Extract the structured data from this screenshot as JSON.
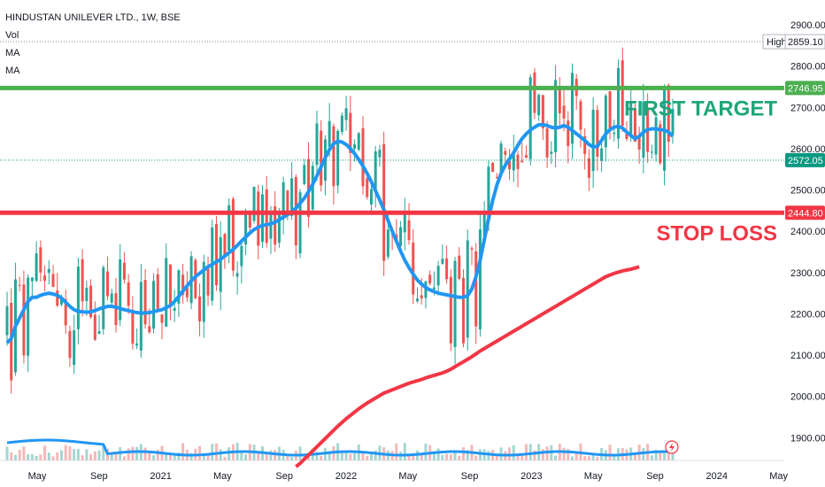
{
  "legend": {
    "symbol": "HINDUSTAN UNILEVER LTD., 1W, BSE",
    "vol_label": "Vol",
    "ma1_label": "MA",
    "ma2_label": "MA"
  },
  "colors": {
    "up": "#26a69a",
    "down": "#ef5350",
    "target_line": "#4caf50",
    "stop_line": "#f23645",
    "ma_short": "#2196f3",
    "ma_long": "#f23645",
    "last_price_tag": "#089981",
    "vol_up": "#a5d6d0",
    "vol_down": "#f5b8b8"
  },
  "annotations": {
    "target_label": "FIRST TARGET",
    "stop_label": "STOP LOSS"
  },
  "price_tags": {
    "high_label": "High",
    "high_value": "2859.10",
    "target_value": "2746.95",
    "last_value": "2572.05",
    "stop_value": "2444.80"
  },
  "chart_data": {
    "type": "candlestick",
    "title": "HINDUSTAN UNILEVER LTD., 1W, BSE",
    "y_ticks": [
      "2900.00",
      "2800.00",
      "2700.00",
      "2600.00",
      "2500.00",
      "2400.00",
      "2300.00",
      "2200.00",
      "2100.00",
      "2000.00",
      "1900.00"
    ],
    "x_ticks": [
      "May",
      "Sep",
      "2021",
      "May",
      "Sep",
      "2022",
      "May",
      "Sep",
      "2023",
      "May",
      "Sep",
      "2024",
      "May"
    ],
    "ylim": [
      1845,
      2960
    ],
    "levels": {
      "first_target": 2746.95,
      "stop_loss": 2444.8,
      "high": 2859.1,
      "last": 2572.05
    },
    "ma_short": [
      2130,
      2140,
      2170,
      2190,
      2210,
      2230,
      2240,
      2240,
      2245,
      2248,
      2250,
      2248,
      2245,
      2238,
      2228,
      2218,
      2210,
      2206,
      2205,
      2204,
      2205,
      2208,
      2212,
      2215,
      2218,
      2218,
      2216,
      2213,
      2210,
      2208,
      2205,
      2203,
      2202,
      2202,
      2203,
      2205,
      2208,
      2210,
      2215,
      2220,
      2230,
      2242,
      2255,
      2268,
      2280,
      2290,
      2298,
      2306,
      2314,
      2320,
      2326,
      2332,
      2340,
      2348,
      2356,
      2366,
      2376,
      2386,
      2396,
      2404,
      2410,
      2414,
      2416,
      2418,
      2422,
      2428,
      2434,
      2440,
      2448,
      2456,
      2468,
      2480,
      2496,
      2514,
      2534,
      2556,
      2578,
      2598,
      2612,
      2618,
      2616,
      2610,
      2600,
      2588,
      2574,
      2558,
      2540,
      2520,
      2498,
      2476,
      2452,
      2426,
      2400,
      2376,
      2352,
      2330,
      2312,
      2296,
      2282,
      2272,
      2264,
      2258,
      2254,
      2250,
      2248,
      2246,
      2244,
      2242,
      2240,
      2240,
      2244,
      2260,
      2290,
      2330,
      2380,
      2430,
      2475,
      2512,
      2540,
      2560,
      2575,
      2590,
      2608,
      2624,
      2636,
      2645,
      2652,
      2658,
      2658,
      2656,
      2652,
      2650,
      2652,
      2656,
      2652,
      2644,
      2636,
      2628,
      2620,
      2610,
      2604,
      2606,
      2620,
      2636,
      2646,
      2652,
      2654,
      2650,
      2640,
      2632,
      2624,
      2630,
      2640,
      2646,
      2648,
      2648,
      2646,
      2645,
      2640,
      2630
    ],
    "ma_long": [
      null,
      null,
      null,
      null,
      null,
      null,
      null,
      null,
      null,
      null,
      null,
      null,
      null,
      null,
      null,
      null,
      null,
      null,
      null,
      null,
      null,
      null,
      null,
      null,
      null,
      null,
      null,
      null,
      null,
      null,
      null,
      null,
      null,
      null,
      null,
      null,
      null,
      null,
      null,
      null,
      null,
      null,
      null,
      null,
      null,
      null,
      null,
      null,
      null,
      null,
      null,
      null,
      null,
      null,
      null,
      null,
      null,
      null,
      null,
      null,
      null,
      null,
      null,
      null,
      null,
      null,
      null,
      null,
      null,
      1830,
      1838,
      1848,
      1858,
      1868,
      1878,
      1888,
      1898,
      1908,
      1918,
      1928,
      1937,
      1946,
      1954,
      1962,
      1970,
      1977,
      1984,
      1990,
      1996,
      2002,
      2008,
      2012,
      2016,
      2020,
      2024,
      2028,
      2032,
      2035,
      2038,
      2041,
      2045,
      2048,
      2051,
      2054,
      2057,
      2061,
      2066,
      2072,
      2078,
      2084,
      2090,
      2096,
      2103,
      2110,
      2116,
      2122,
      2128,
      2134,
      2140,
      2146,
      2152,
      2158,
      2164,
      2170,
      2176,
      2182,
      2188,
      2194,
      2200,
      2206,
      2212,
      2218,
      2224,
      2230,
      2236,
      2242,
      2248,
      2254,
      2260,
      2266,
      2272,
      2278,
      2284,
      2290,
      2294,
      2298,
      2301,
      2304,
      2306,
      2308,
      2311,
      2314
    ],
    "seed": 42
  }
}
